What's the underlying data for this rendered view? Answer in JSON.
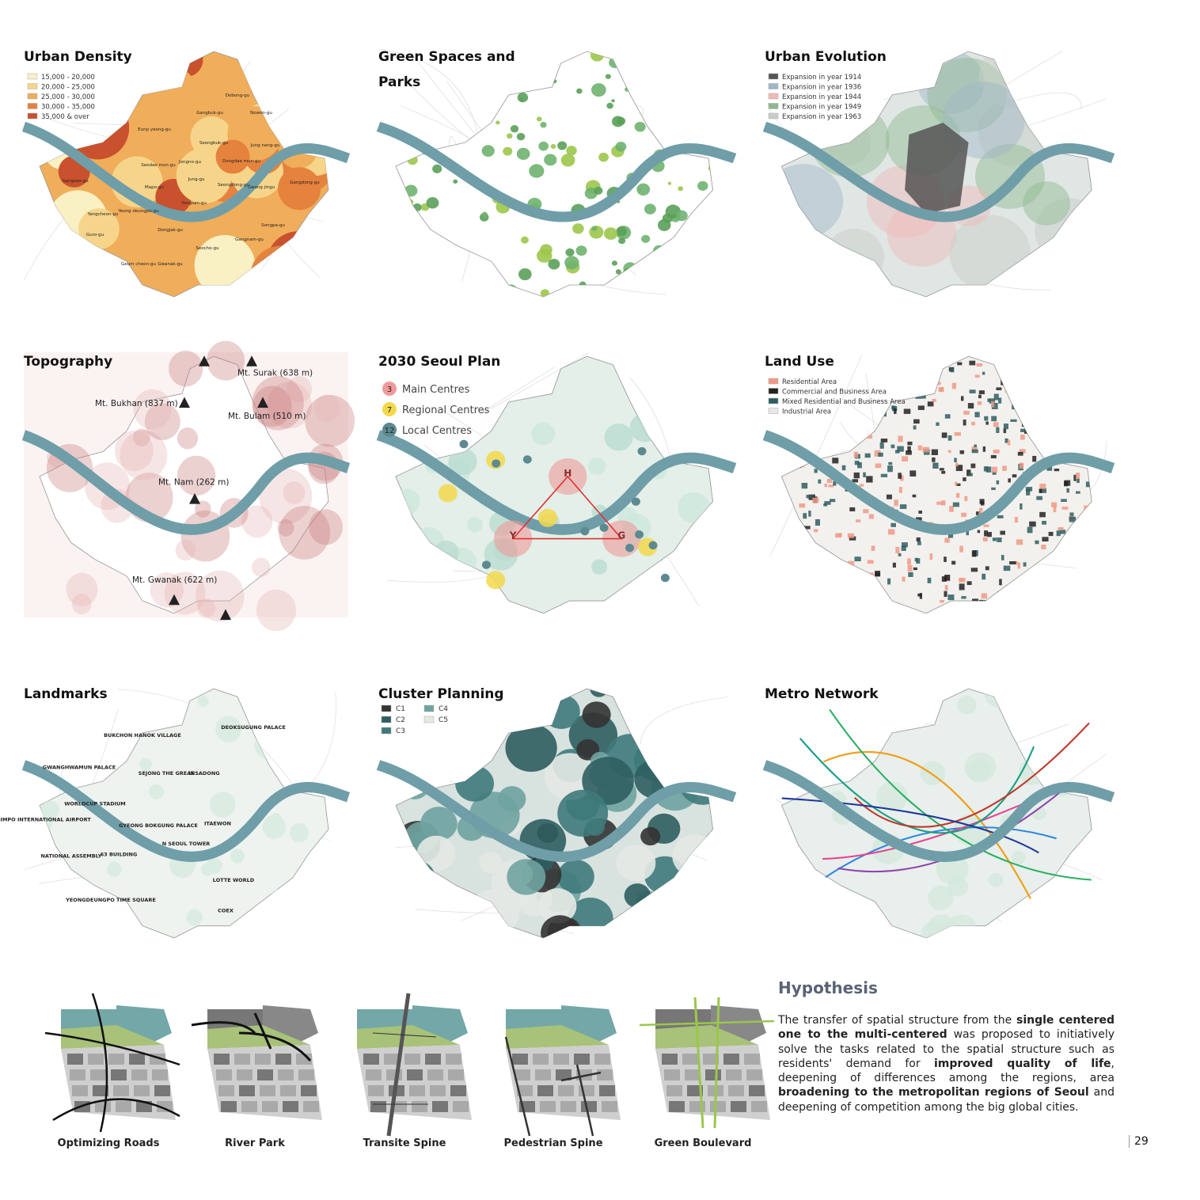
{
  "panels": [
    {
      "title": "Urban Density",
      "legend": [
        {
          "label": "15,000 - 20,000",
          "color": "#f9f0c4"
        },
        {
          "label": "20,000 - 25,000",
          "color": "#f6d58a"
        },
        {
          "label": "25,000 - 30,000",
          "color": "#f0ad5a"
        },
        {
          "label": "30,000 - 35,000",
          "color": "#e5823d"
        },
        {
          "label": "35,000 & over",
          "color": "#c9512e"
        }
      ],
      "labels": [
        "Dobong-gu",
        "Gangbuk-gu",
        "Nowon-gu",
        "Eunp yeong-gu",
        "Seongbuk-gu",
        "Jung nang-gu",
        "Seodae mun-gu",
        "Jongno-gu",
        "Dongdae mun-gu",
        "Jung-gu",
        "Mapo-gu",
        "Seongdong-gu",
        "Gwang jingu",
        "Gangseo-gu",
        "Gangdong-gu",
        "Yangcheon-gu",
        "Yeong deungpo-gu",
        "Yongsan-gu",
        "Dongjak-gu",
        "Guro-gu",
        "Songpa-gu",
        "Gangnam-gu",
        "Seocho-gu",
        "Geum cheon-gu",
        "Gwanak-gu"
      ]
    },
    {
      "title": "Green Spaces and Parks",
      "legend": [],
      "labels": []
    },
    {
      "title": "Urban Evolution",
      "legend": [
        {
          "label": "Expansion in year 1914",
          "color": "#555555"
        },
        {
          "label": "Expansion in year 1936",
          "color": "#9fb6c7"
        },
        {
          "label": "Expansion in year 1944",
          "color": "#f2b8b8"
        },
        {
          "label": "Expansion in year 1949",
          "color": "#8fb88f"
        },
        {
          "label": "Expansion in year 1963",
          "color": "#c8cfc8"
        }
      ],
      "labels": []
    },
    {
      "title": "Topography",
      "legend": [],
      "labels": [
        "Mt. Surak (638 m)",
        "Mt. Bukhan (837 m)",
        "Mt. Bulam (510 m)",
        "Mt. Nam (262 m)",
        "Mt. Gwanak (622 m)"
      ]
    },
    {
      "title": "2030 Seoul Plan",
      "legend": [
        {
          "number": "3",
          "label": "Main Centres",
          "color": "#ef9a9a"
        },
        {
          "number": "7",
          "label": "Regional Centres",
          "color": "#f3d84b"
        },
        {
          "number": "12",
          "label": "Local Centres",
          "color": "#5d8a90"
        }
      ],
      "labels": [
        "H",
        "Y",
        "G"
      ]
    },
    {
      "title": "Land Use",
      "legend": [
        {
          "label": "Residential Area",
          "color": "#ef9a85"
        },
        {
          "label": "Commercial and Business Area",
          "color": "#222222"
        },
        {
          "label": "Mixed Residential and Business Area",
          "color": "#2f5e60"
        },
        {
          "label": "Industrial Area",
          "color": "#e8e8e8"
        }
      ],
      "labels": []
    },
    {
      "title": "Landmarks",
      "legend": [],
      "labels": [
        "DEOKSUGUNG PALACE",
        "BUKCHON HANOK VILLAGE",
        "GWANGHWAMUN PALACE",
        "SEJONG THE GREAT",
        "INSADONG",
        "WORLDCUP STADIUM",
        "GIMPO INTERNATIONAL AIRPORT",
        "GYEONG BOKGUNG PALACE",
        "ITAEWON",
        "N SEOUL TOWER",
        "NATIONAL ASSEMBLY",
        "63 BUILDING",
        "LOTTE WORLD",
        "YEONGDEUNGPO TIME SQUARE",
        "COEX"
      ]
    },
    {
      "title": "Cluster Planning",
      "legend": [
        {
          "label": "C1",
          "color": "#333333"
        },
        {
          "label": "C2",
          "color": "#2f5e60"
        },
        {
          "label": "C3",
          "color": "#3f7a7b"
        },
        {
          "label": "C4",
          "color": "#6fa3a0"
        },
        {
          "label": "C5",
          "color": "#e4e9e4"
        }
      ],
      "labels": []
    },
    {
      "title": "Metro Network",
      "legend": [],
      "labels": []
    }
  ],
  "strategies": [
    "Optimizing Roads",
    "River Park",
    "Transite Spine",
    "Pedestrian Spine",
    "Green Boulevard"
  ],
  "hypothesis": {
    "title": "Hypothesis",
    "segments": [
      {
        "text": "The transfer of spatial structure from the ",
        "bold": false
      },
      {
        "text": "single centered one to the multi-centered",
        "bold": true
      },
      {
        "text": " was proposed to initiatively solve the tasks related to the spatial structure such as residents' demand for ",
        "bold": false
      },
      {
        "text": "improved quality of life",
        "bold": true
      },
      {
        "text": ", deepening of differences among the regions, area ",
        "bold": false
      },
      {
        "text": "broadening to the metropolitan regions of Seoul",
        "bold": true
      },
      {
        "text": " and deepening of competition among the big global cities.",
        "bold": false
      }
    ]
  },
  "page_number": "29"
}
